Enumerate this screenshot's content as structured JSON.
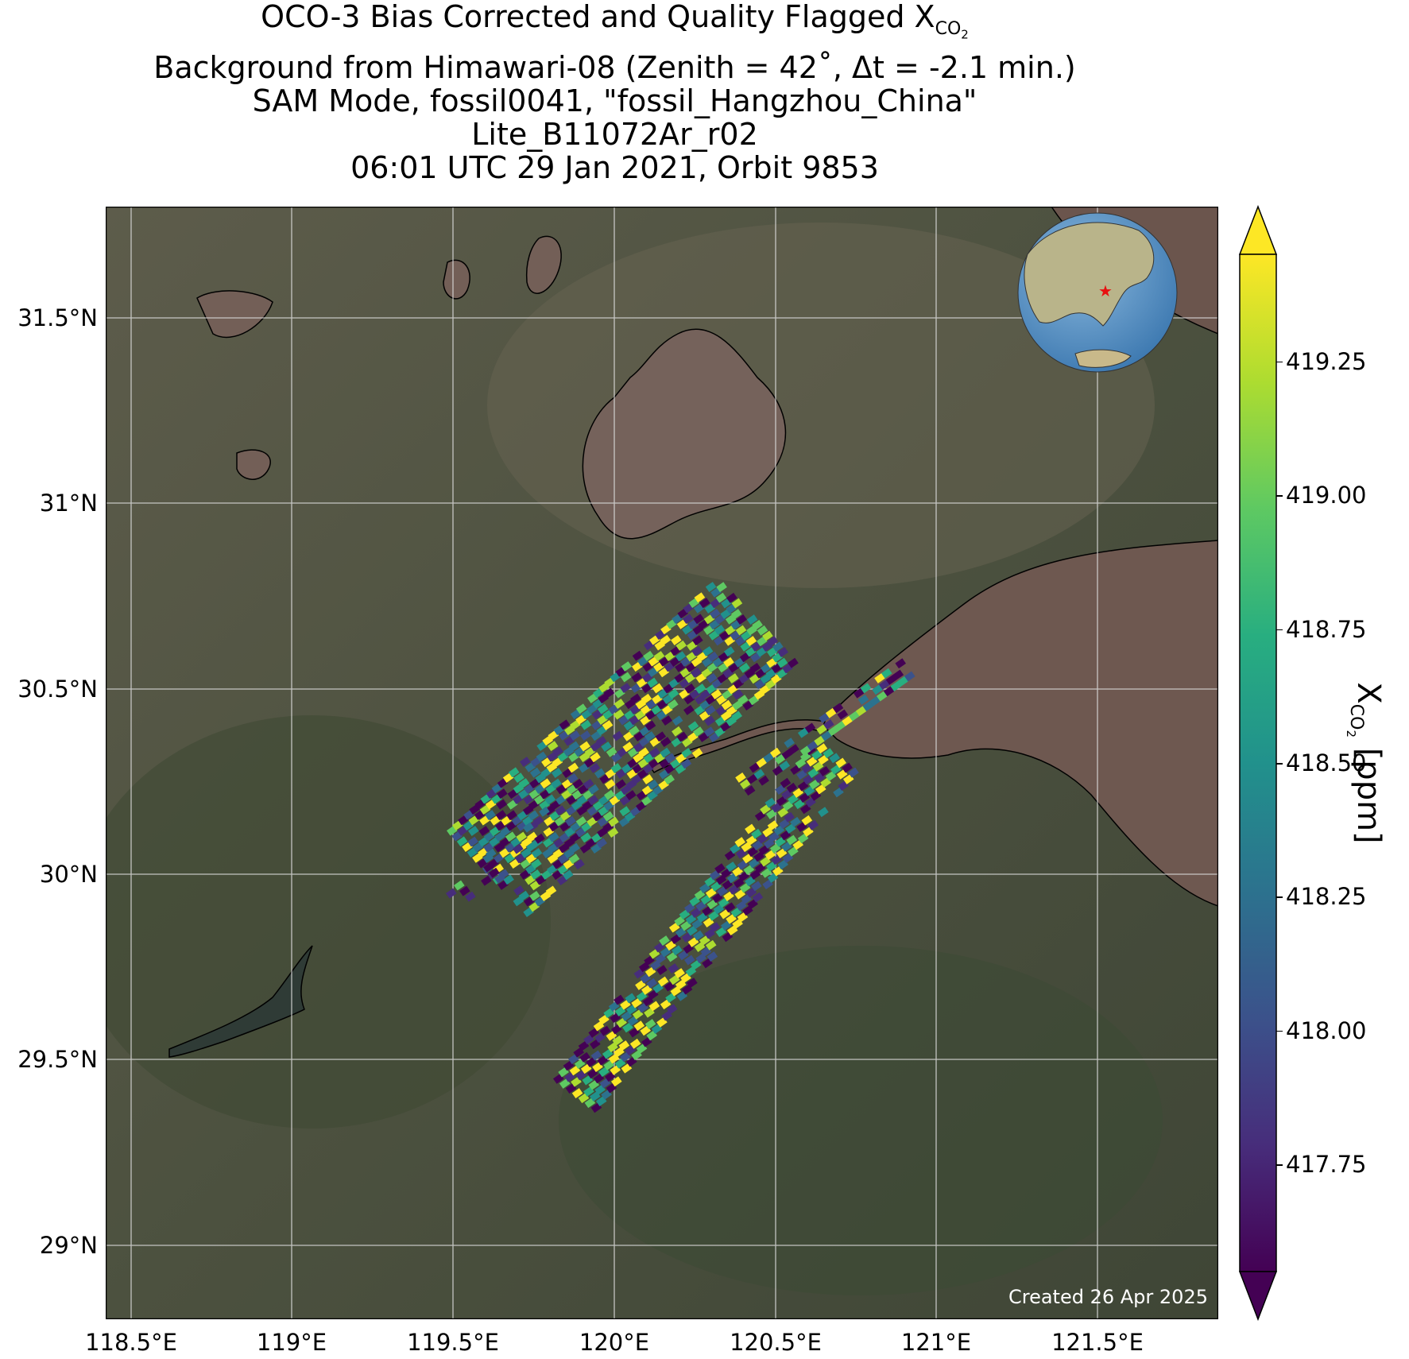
{
  "title": {
    "line1_prefix": "OCO-3 Bias Corrected and Quality Flagged X",
    "line1_sub": "CO",
    "line1_sub2": "2",
    "line2": "Background from Himawari-08 (Zenith = 42˚, Δt = -2.1 min.)",
    "line3": "SAM Mode, fossil0041, \"fossil_Hangzhou_China\"",
    "line4": "Lite_B11072Ar_r02",
    "line5": "06:01 UTC 29 Jan 2021, Orbit 9853"
  },
  "map": {
    "lon_range": [
      118.3,
      121.75
    ],
    "lat_range": [
      28.8,
      31.8
    ],
    "lon_ticks": [
      "118.5°E",
      "119°E",
      "119.5°E",
      "120°E",
      "120.5°E",
      "121°E",
      "121.5°E"
    ],
    "lon_tick_values": [
      118.5,
      119.0,
      119.5,
      120.0,
      120.5,
      121.0,
      121.5
    ],
    "lat_ticks": [
      "31.5°N",
      "31°N",
      "30.5°N",
      "30°N",
      "29.5°N",
      "29°N"
    ],
    "lat_tick_values": [
      31.5,
      31.0,
      30.5,
      30.0,
      29.5,
      29.0
    ],
    "gridlines": true,
    "site_marker": "red-star",
    "colors": {
      "land": "#4f5340",
      "water": "#6f5a52",
      "coastline": "#000000",
      "grid": "#d9d9d9"
    }
  },
  "colorbar": {
    "ticks": [
      "419.25",
      "419.00",
      "418.75",
      "418.50",
      "418.25",
      "418.00",
      "417.75"
    ],
    "tick_values": [
      419.25,
      419.0,
      418.75,
      418.5,
      418.25,
      418.0,
      417.75
    ],
    "range": [
      417.55,
      419.45
    ],
    "label_prefix": "X",
    "label_sub": "CO",
    "label_sub2": "2",
    "label_suffix": " [ppm]",
    "colormap": "viridis",
    "extend": "both"
  },
  "footer": {
    "created": "Created 26 Apr 2025"
  }
}
